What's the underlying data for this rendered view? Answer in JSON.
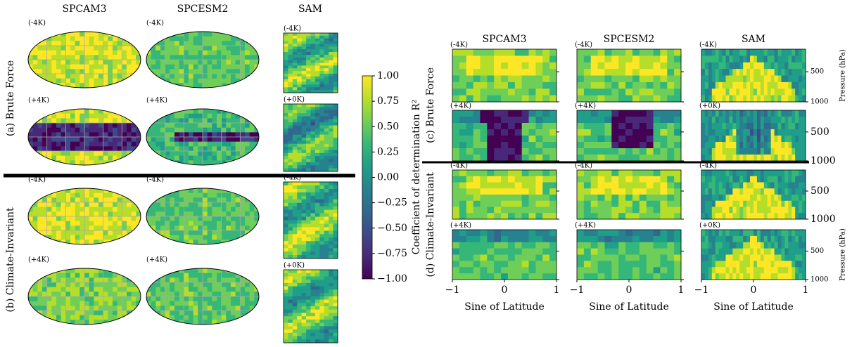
{
  "chart_data": {
    "type": "heatmap",
    "colorbar": {
      "label": "Coefficient of determination R²",
      "lim": [
        -1,
        1
      ],
      "ticks": [
        {
          "value": 1,
          "label": "1.00"
        },
        {
          "value": 0.75,
          "label": "0.75"
        },
        {
          "value": 0.5,
          "label": "0.50"
        },
        {
          "value": 0.25,
          "label": "0.25"
        },
        {
          "value": 0,
          "label": "0.00"
        },
        {
          "value": -0.25,
          "label": "−0.25"
        },
        {
          "value": -0.5,
          "label": "−0.50"
        },
        {
          "value": -0.75,
          "label": "−0.75"
        },
        {
          "value": -1,
          "label": "−1.00"
        }
      ]
    },
    "columns": [
      "SPCAM3",
      "SPCESM2",
      "SAM"
    ],
    "maps": {
      "rows": [
        "(a) Brute Force",
        "(b) Climate-Invariant"
      ],
      "panels": [
        [
          "(-4K)",
          "(-4K)",
          "(-4K)"
        ],
        [
          "(+4K)",
          "(+4K)",
          "(+0K)"
        ],
        [
          "(-4K)",
          "(-4K)",
          "(-4K)"
        ],
        [
          "(+4K)",
          "(+4K)",
          "(+0K)"
        ]
      ]
    },
    "profiles": {
      "rows": [
        "(c) Brute Force",
        "(d) Climate-Invariant"
      ],
      "panels": [
        [
          "(-4K)",
          "(-4K)",
          "(-4K)"
        ],
        [
          "(+4K)",
          "(+4K)",
          "(+0K)"
        ],
        [
          "(-4K)",
          "(-4K)",
          "(-4K)"
        ],
        [
          "(+4K)",
          "(+4K)",
          "(+0K)"
        ]
      ],
      "xlabel": "Sine of Latitude",
      "xlim": [
        -1,
        1
      ],
      "xticks": [
        {
          "value": -1,
          "label": "−1"
        },
        0,
        1
      ],
      "ylabel": "Pressure (hPa)",
      "ylim": [
        1000,
        125
      ],
      "yticks": [
        500,
        1000
      ]
    }
  }
}
